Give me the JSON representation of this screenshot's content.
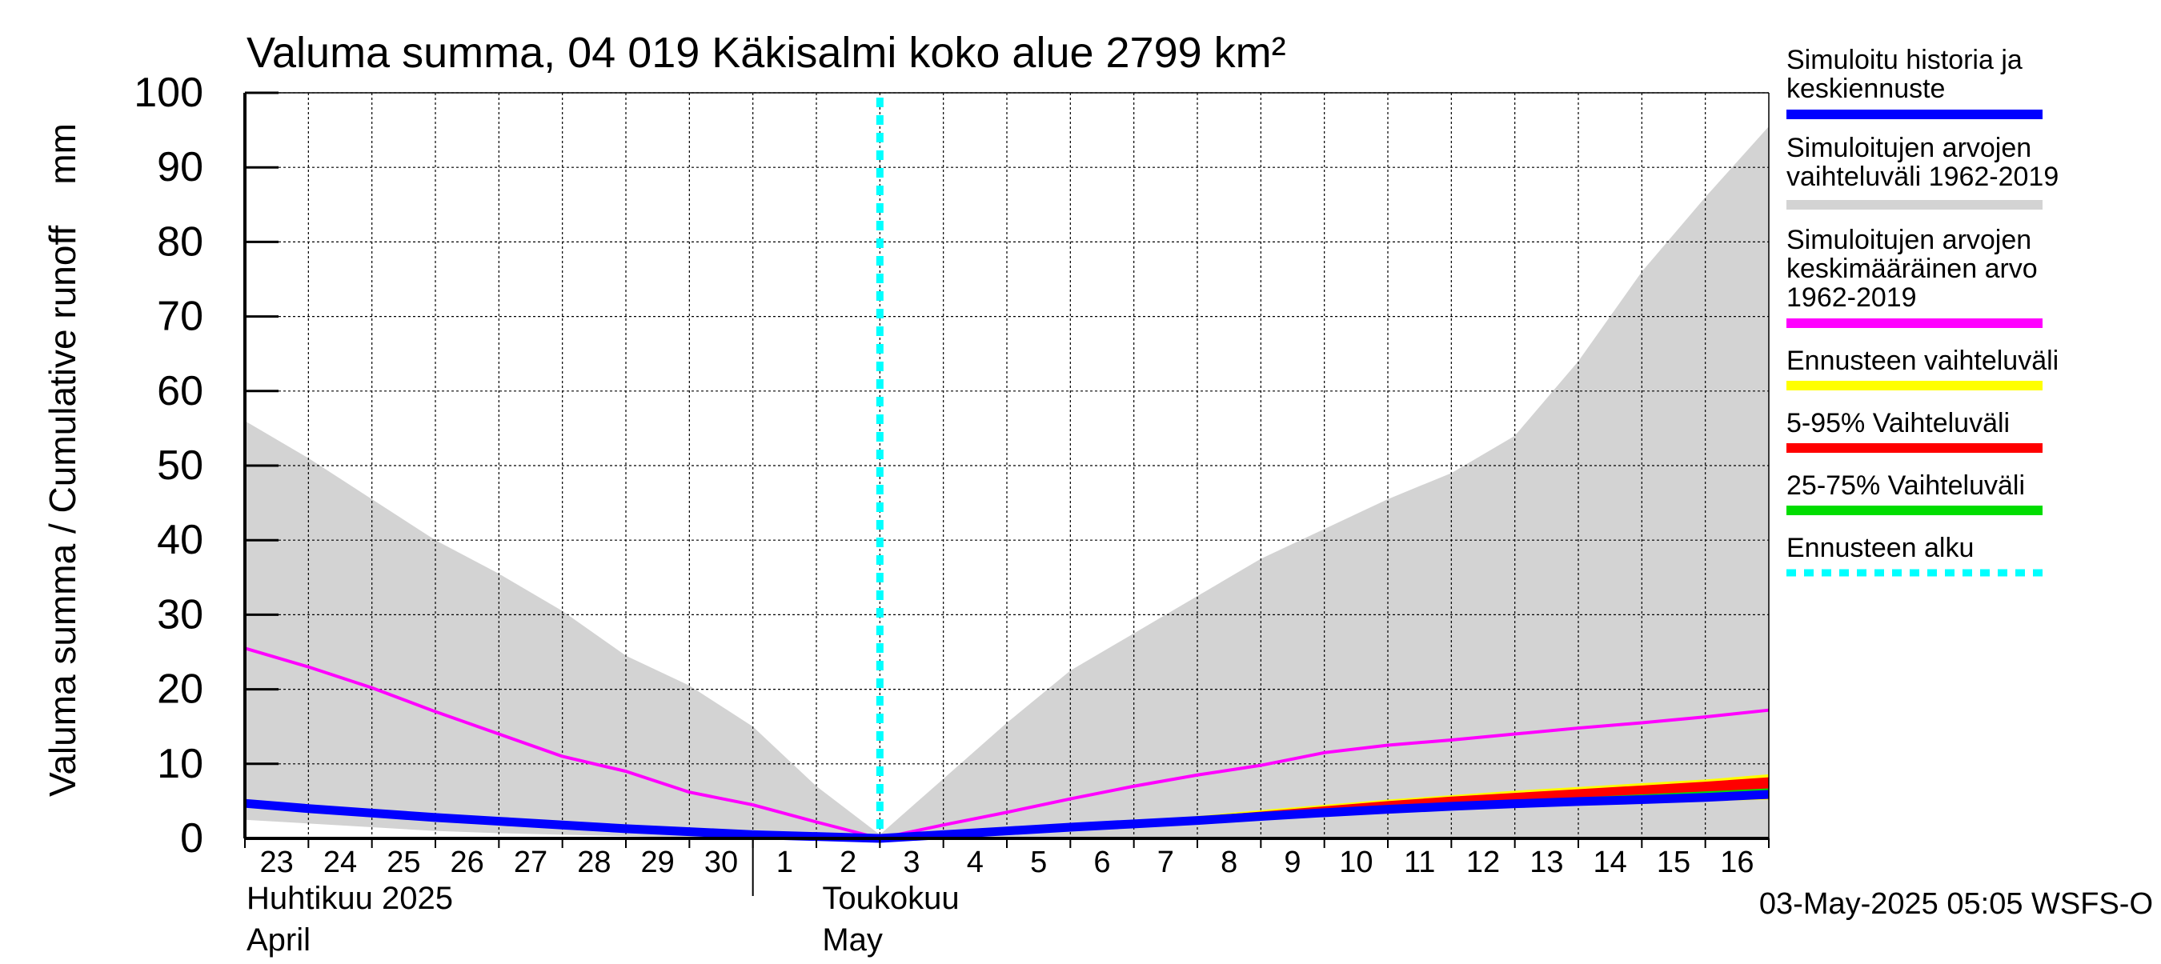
{
  "chart_data": {
    "type": "line",
    "title": "Valuma summa, 04 019 Käkisalmi koko alue 2799 km²",
    "ylabel": "Valuma summa / Cumulative runoff    mm",
    "ylim": [
      0,
      100
    ],
    "yticks": [
      0,
      10,
      20,
      30,
      40,
      50,
      60,
      70,
      80,
      90,
      100
    ],
    "x_day_labels": [
      "23",
      "24",
      "25",
      "26",
      "27",
      "28",
      "29",
      "30",
      "1",
      "2",
      "3",
      "4",
      "5",
      "6",
      "7",
      "8",
      "9",
      "10",
      "11",
      "12",
      "13",
      "14",
      "15",
      "16"
    ],
    "x_dates": [
      "2025-04-23",
      "2025-04-24",
      "2025-04-25",
      "2025-04-26",
      "2025-04-27",
      "2025-04-28",
      "2025-04-29",
      "2025-04-30",
      "2025-05-01",
      "2025-05-02",
      "2025-05-03",
      "2025-05-04",
      "2025-05-05",
      "2025-05-06",
      "2025-05-07",
      "2025-05-08",
      "2025-05-09",
      "2025-05-10",
      "2025-05-11",
      "2025-05-12",
      "2025-05-13",
      "2025-05-14",
      "2025-05-15",
      "2025-05-16",
      "2025-05-17"
    ],
    "month_labels": [
      {
        "fi": "Huhtikuu  2025",
        "en": "April"
      },
      {
        "fi": "Toukokuu",
        "en": "May"
      }
    ],
    "forecast_start": "2025-05-03",
    "grid": true,
    "legend_position": "right",
    "legend": [
      {
        "label_lines": [
          "Simuloitu historia ja",
          "keskiennuste"
        ],
        "color": "#0000ff",
        "style": "solid"
      },
      {
        "label_lines": [
          "Simuloitujen arvojen",
          "vaihteluväli 1962-2019"
        ],
        "color": "#d3d3d3",
        "style": "solid"
      },
      {
        "label_lines": [
          "Simuloitujen arvojen",
          "keskimääräinen arvo",
          "   1962-2019"
        ],
        "color": "#ff00ff",
        "style": "solid"
      },
      {
        "label_lines": [
          "Ennusteen vaihteluväli"
        ],
        "color": "#ffff00",
        "style": "solid"
      },
      {
        "label_lines": [
          "5-95% Vaihteluväli"
        ],
        "color": "#ff0000",
        "style": "solid"
      },
      {
        "label_lines": [
          "25-75% Vaihteluväli"
        ],
        "color": "#00dd00",
        "style": "solid"
      },
      {
        "label_lines": [
          "Ennusteen alku"
        ],
        "color": "#00ffff",
        "style": "dotted"
      }
    ],
    "series": [
      {
        "name": "Simuloitujen arvojen vaihteluväli 1962-2019",
        "kind": "band",
        "color": "#d3d3d3",
        "x": [
          "2025-04-23",
          "2025-04-24",
          "2025-04-25",
          "2025-04-26",
          "2025-04-27",
          "2025-04-28",
          "2025-04-29",
          "2025-04-30",
          "2025-05-01",
          "2025-05-02",
          "2025-05-03",
          "2025-05-04",
          "2025-05-05",
          "2025-05-06",
          "2025-05-07",
          "2025-05-08",
          "2025-05-09",
          "2025-05-10",
          "2025-05-11",
          "2025-05-12",
          "2025-05-13",
          "2025-05-14",
          "2025-05-15",
          "2025-05-16",
          "2025-05-17"
        ],
        "upper": [
          56,
          51,
          45.5,
          40,
          35.5,
          30.5,
          24.5,
          20.5,
          15,
          7,
          0.5,
          8,
          15.5,
          22.5,
          27.5,
          32.5,
          37.5,
          41.5,
          45.5,
          49,
          54,
          64,
          76,
          86,
          95.5
        ],
        "lower": [
          2.5,
          2,
          1.5,
          1,
          0.7,
          0.5,
          0.3,
          0.1,
          0,
          0,
          0,
          0,
          0,
          0,
          0,
          0,
          0,
          0,
          0,
          0,
          0,
          0,
          0,
          0,
          0
        ]
      },
      {
        "name": "Simuloitujen arvojen keskimääräinen arvo 1962-2019",
        "kind": "line",
        "color": "#ff00ff",
        "x": [
          "2025-04-23",
          "2025-04-24",
          "2025-04-25",
          "2025-04-26",
          "2025-04-27",
          "2025-04-28",
          "2025-04-29",
          "2025-04-30",
          "2025-05-01",
          "2025-05-02",
          "2025-05-03",
          "2025-05-04",
          "2025-05-05",
          "2025-05-06",
          "2025-05-07",
          "2025-05-08",
          "2025-05-09",
          "2025-05-10",
          "2025-05-11",
          "2025-05-12",
          "2025-05-13",
          "2025-05-14",
          "2025-05-15",
          "2025-05-16",
          "2025-05-17"
        ],
        "values": [
          25.5,
          23,
          20.2,
          17,
          14,
          11,
          9,
          6.2,
          4.5,
          2.2,
          0,
          1.8,
          3.5,
          5.3,
          7,
          8.5,
          9.8,
          11.5,
          12.5,
          13.2,
          14,
          14.8,
          15.5,
          16.3,
          17.2
        ]
      },
      {
        "name": "Ennusteen vaihteluväli",
        "kind": "band",
        "color": "#ffff00",
        "x": [
          "2025-05-03",
          "2025-05-04",
          "2025-05-05",
          "2025-05-06",
          "2025-05-07",
          "2025-05-08",
          "2025-05-09",
          "2025-05-10",
          "2025-05-11",
          "2025-05-12",
          "2025-05-13",
          "2025-05-14",
          "2025-05-15",
          "2025-05-16",
          "2025-05-17"
        ],
        "upper": [
          0,
          0.7,
          1.3,
          1.8,
          2.4,
          3.0,
          3.8,
          4.5,
          5.2,
          5.8,
          6.4,
          6.9,
          7.4,
          7.9,
          8.6
        ],
        "lower": [
          0,
          0.4,
          0.8,
          1.2,
          1.6,
          2.0,
          2.5,
          3.0,
          3.4,
          3.8,
          4.1,
          4.4,
          4.7,
          5.0,
          5.2
        ]
      },
      {
        "name": "5-95% Vaihteluväli",
        "kind": "band",
        "color": "#ff0000",
        "x": [
          "2025-05-03",
          "2025-05-04",
          "2025-05-05",
          "2025-05-06",
          "2025-05-07",
          "2025-05-08",
          "2025-05-09",
          "2025-05-10",
          "2025-05-11",
          "2025-05-12",
          "2025-05-13",
          "2025-05-14",
          "2025-05-15",
          "2025-05-16",
          "2025-05-17"
        ],
        "upper": [
          0,
          0.6,
          1.2,
          1.7,
          2.3,
          2.9,
          3.6,
          4.3,
          5.0,
          5.6,
          6.1,
          6.6,
          7.1,
          7.6,
          8.2
        ],
        "lower": [
          0,
          0.45,
          0.85,
          1.25,
          1.65,
          2.05,
          2.6,
          3.1,
          3.5,
          3.9,
          4.2,
          4.5,
          4.8,
          5.1,
          5.3
        ]
      },
      {
        "name": "25-75% Vaihteluväli",
        "kind": "band",
        "color": "#00dd00",
        "x": [
          "2025-05-03",
          "2025-05-04",
          "2025-05-05",
          "2025-05-06",
          "2025-05-07",
          "2025-05-08",
          "2025-05-09",
          "2025-05-10",
          "2025-05-11",
          "2025-05-12",
          "2025-05-13",
          "2025-05-14",
          "2025-05-15",
          "2025-05-16",
          "2025-05-17"
        ],
        "upper": [
          0,
          0.55,
          1.05,
          1.5,
          2.0,
          2.5,
          3.1,
          3.7,
          4.2,
          4.7,
          5.1,
          5.5,
          5.9,
          6.3,
          6.7
        ],
        "lower": [
          0,
          0.5,
          0.95,
          1.35,
          1.8,
          2.25,
          2.8,
          3.3,
          3.75,
          4.2,
          4.5,
          4.8,
          5.1,
          5.4,
          5.6
        ]
      },
      {
        "name": "Simuloitu historia ja keskiennuste",
        "kind": "line",
        "color": "#0000ff",
        "x": [
          "2025-04-23",
          "2025-04-24",
          "2025-04-25",
          "2025-04-26",
          "2025-04-27",
          "2025-04-28",
          "2025-04-29",
          "2025-04-30",
          "2025-05-01",
          "2025-05-02",
          "2025-05-03",
          "2025-05-04",
          "2025-05-05",
          "2025-05-06",
          "2025-05-07",
          "2025-05-08",
          "2025-05-09",
          "2025-05-10",
          "2025-05-11",
          "2025-05-12",
          "2025-05-13",
          "2025-05-14",
          "2025-05-15",
          "2025-05-16",
          "2025-05-17"
        ],
        "values": [
          4.7,
          4.0,
          3.4,
          2.8,
          2.3,
          1.8,
          1.3,
          0.9,
          0.5,
          0.25,
          0,
          0.5,
          1.0,
          1.5,
          1.95,
          2.4,
          2.95,
          3.45,
          3.9,
          4.3,
          4.65,
          4.95,
          5.2,
          5.5,
          5.9
        ]
      }
    ]
  },
  "footer": {
    "timestamp": "03-May-2025 05:05 WSFS-O"
  }
}
